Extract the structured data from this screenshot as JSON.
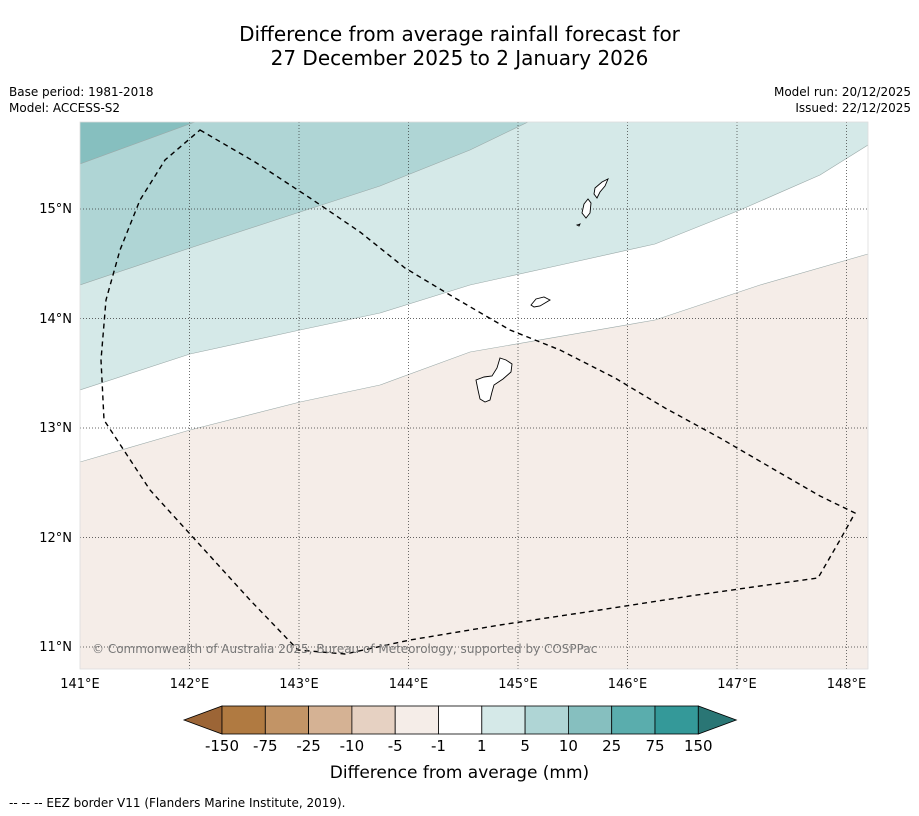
{
  "title": {
    "line1": "Difference from average rainfall forecast for",
    "line2": "27 December 2025 to 2 January 2026"
  },
  "meta_left": {
    "base_period": "Base period: 1981-2018",
    "model": "Model: ACCESS-S2"
  },
  "meta_right": {
    "model_run": "Model run: 20/12/2025",
    "issued": "Issued: 22/12/2025"
  },
  "map": {
    "lon_range": [
      141,
      148.2
    ],
    "lat_range": [
      10.8,
      15.8
    ],
    "lon_ticks": [
      141,
      142,
      143,
      144,
      145,
      146,
      147,
      148
    ],
    "lon_labels": [
      "141°E",
      "142°E",
      "143°E",
      "144°E",
      "145°E",
      "146°E",
      "147°E",
      "148°E"
    ],
    "lat_ticks": [
      11,
      12,
      13,
      14,
      15
    ],
    "lat_labels": [
      "11°N",
      "12°N",
      "13°N",
      "14°N",
      "15°N"
    ],
    "copyright": "© Commonwealth of Australia 2025, Bureau of Meteorology, supported by COSPPac",
    "colors": {
      "cat_neg5_neg1": "#f5ede8",
      "cat_neg1_1": "#ffffff",
      "cat_1_5": "#d5e9e8",
      "cat_5_10": "#afd5d5",
      "cat_10_25": "#86bfbf"
    }
  },
  "colorbar": {
    "label": "Difference from average (mm)",
    "tick_labels": [
      "-150",
      "-75",
      "-25",
      "-10",
      "-5",
      "-1",
      "1",
      "5",
      "10",
      "25",
      "75",
      "150"
    ],
    "colors": [
      "#9c6536",
      "#b07a41",
      "#c29466",
      "#d5b294",
      "#e6d1c2",
      "#f5ede8",
      "#ffffff",
      "#d5e9e8",
      "#afd5d5",
      "#86bfbf",
      "#5aadad",
      "#349999",
      "#2a7675"
    ]
  },
  "footer": "--  --  -- EEZ border V11 (Flanders Marine Institute, 2019)."
}
